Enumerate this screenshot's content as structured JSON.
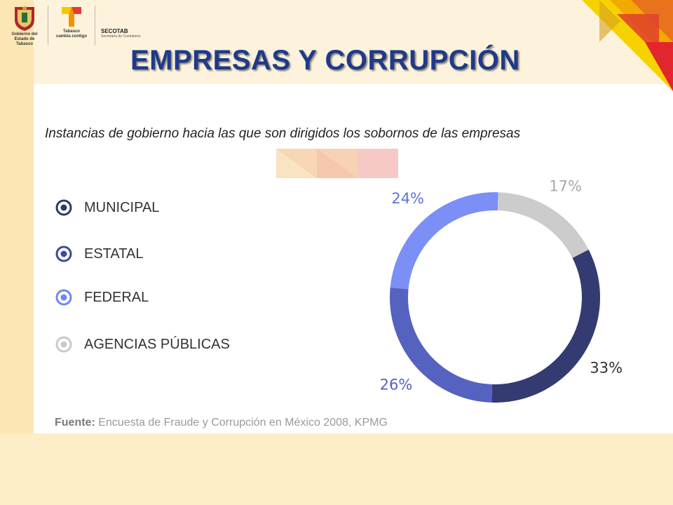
{
  "header": {
    "logo1_caption": "Gobierno del Estado de Tabasco",
    "logo2_caption": "Tabasco",
    "logo2_sub": "cambia contigo",
    "secotab_label": "SECOTAB",
    "secotab_sub": "Secretaría de Contraloría"
  },
  "title": "EMPRESAS Y CORRUPCIÓN",
  "subtitle": "Instancias de gobierno hacia las que son dirigidos los sobornos de las empresas",
  "legend": [
    {
      "label": "MUNICIPAL",
      "color": "#2d3a6b"
    },
    {
      "label": "ESTATAL",
      "color": "#3c4aa0"
    },
    {
      "label": "FEDERAL",
      "color": "#6e88f0"
    },
    {
      "label": "AGENCIAS PÚBLICAS",
      "color": "#c9c9c9"
    }
  ],
  "source": {
    "label": "Fuente:",
    "text": " Encuesta de Fraude y Corrupción en México 2008, KPMG"
  },
  "chart_data": {
    "type": "pie",
    "donut": true,
    "title": "",
    "slices": [
      {
        "name": "MUNICIPAL",
        "value": 33,
        "label": "33%",
        "color": "#343b70",
        "label_color": "#333333"
      },
      {
        "name": "ESTATAL",
        "value": 26,
        "label": "26%",
        "color": "#5562c0",
        "label_color": "#5562c0"
      },
      {
        "name": "FEDERAL",
        "value": 24,
        "label": "24%",
        "color": "#7b8ff7",
        "label_color": "#5f72e0"
      },
      {
        "name": "AGENCIAS PÚBLICAS",
        "value": 17,
        "label": "17%",
        "color": "#cccccc",
        "label_color": "#a8a8a8"
      }
    ],
    "start_angle_deg": 63,
    "direction": "clockwise"
  }
}
